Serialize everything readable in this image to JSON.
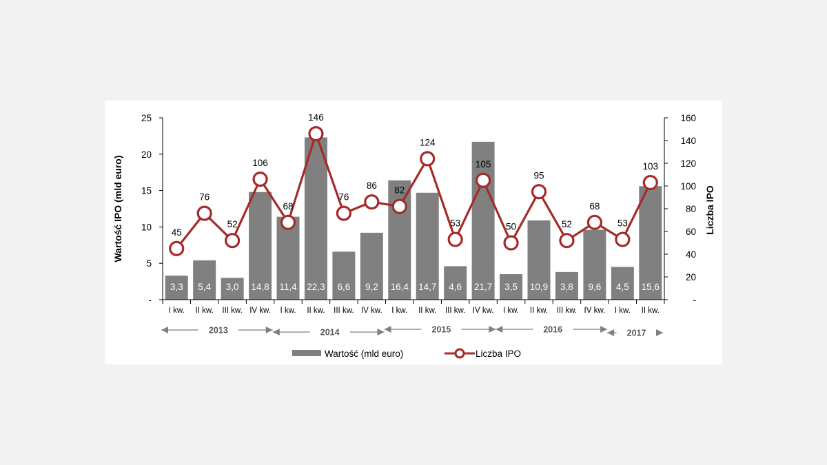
{
  "chart_data": {
    "type": "bar+line",
    "categories": [
      "I kw.",
      "II kw.",
      "III kw.",
      "IV kw.",
      "I kw.",
      "II kw.",
      "III kw.",
      "IV kw.",
      "I kw.",
      "II kw.",
      "III kw.",
      "IV kw.",
      "I kw.",
      "II kw.",
      "III kw.",
      "IV kw.",
      "I kw.",
      "II kw."
    ],
    "years": [
      {
        "label": "2013",
        "start": 0,
        "end": 3
      },
      {
        "label": "2014",
        "start": 4,
        "end": 7
      },
      {
        "label": "2015",
        "start": 8,
        "end": 11
      },
      {
        "label": "2016",
        "start": 12,
        "end": 15
      },
      {
        "label": "2017",
        "start": 16,
        "end": 17
      }
    ],
    "series": [
      {
        "name": "Wartość (mld euro)",
        "type": "bar",
        "axis": "left",
        "values": [
          3.3,
          5.4,
          3.0,
          14.8,
          11.4,
          22.3,
          6.6,
          9.2,
          16.4,
          14.7,
          4.6,
          21.7,
          3.5,
          10.9,
          3.8,
          9.6,
          4.5,
          15.6
        ],
        "labels": [
          "3,3",
          "5,4",
          "3,0",
          "14,8",
          "11,4",
          "22,3",
          "6,6",
          "9,2",
          "16,4",
          "14,7",
          "4,6",
          "21,7",
          "3,5",
          "10,9",
          "3,8",
          "9,6",
          "4,5",
          "15,6"
        ],
        "color": "#808080"
      },
      {
        "name": "Liczba IPO",
        "type": "line",
        "axis": "right",
        "values": [
          45,
          76,
          52,
          106,
          68,
          146,
          76,
          86,
          82,
          124,
          53,
          105,
          50,
          95,
          52,
          68,
          53,
          103
        ],
        "labels": [
          "45",
          "76",
          "52",
          "106",
          "68",
          "146",
          "76",
          "86",
          "82",
          "124",
          "53",
          "105",
          "50",
          "95",
          "52",
          "68",
          "53",
          "103"
        ],
        "color": "#a52a2a"
      }
    ],
    "y_left": {
      "label": "Wartość IPO (mld euro)",
      "min": 0,
      "max": 25,
      "ticks": [
        0,
        5,
        10,
        15,
        20,
        25
      ],
      "tick_labels": [
        "-",
        "5",
        "10",
        "15",
        "20",
        "25"
      ]
    },
    "y_right": {
      "label": "Liczba IPO",
      "min": 0,
      "max": 160,
      "ticks": [
        0,
        20,
        40,
        60,
        80,
        100,
        120,
        140,
        160
      ],
      "tick_labels": [
        "-",
        "20",
        "40",
        "60",
        "80",
        "100",
        "120",
        "140",
        "160"
      ]
    },
    "legend": [
      {
        "name": "Wartość (mld euro)",
        "kind": "bar",
        "color": "#808080"
      },
      {
        "name": "Liczba IPO",
        "kind": "line-marker",
        "color": "#a52a2a"
      }
    ],
    "legend_position": "bottom",
    "grid": false
  }
}
